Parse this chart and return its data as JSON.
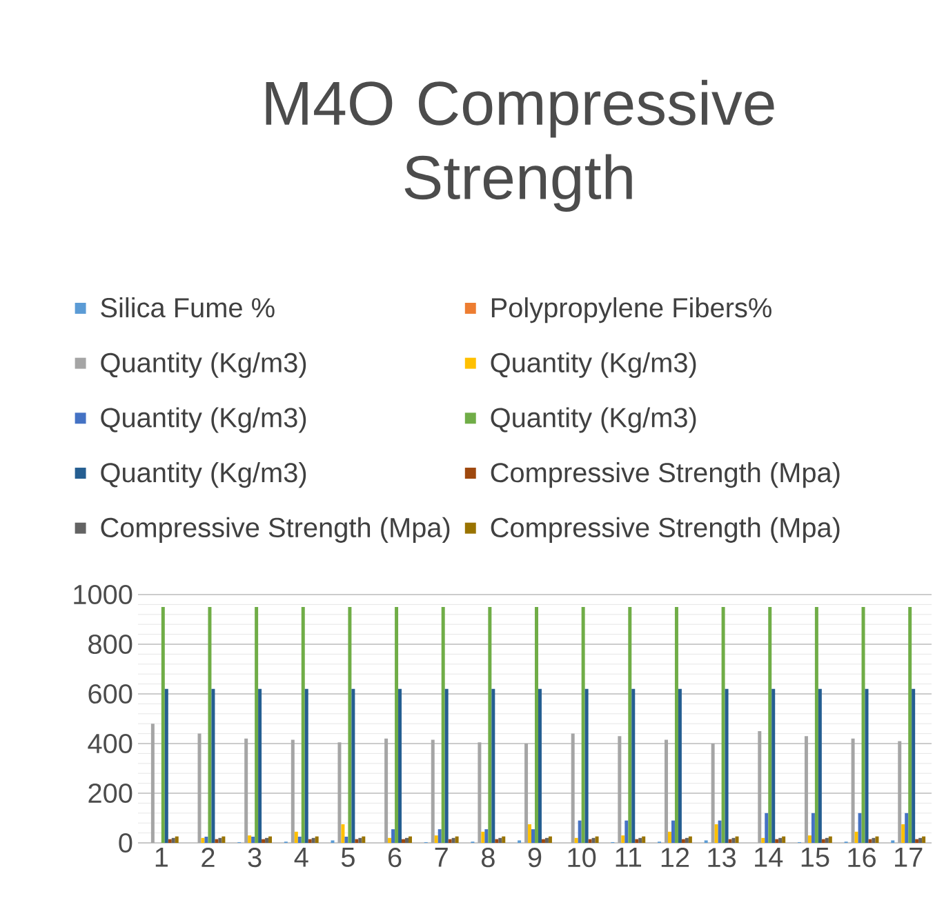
{
  "chart_data": {
    "type": "bar",
    "title": "M4O Compressive Strength",
    "categories": [
      "1",
      "2",
      "3",
      "4",
      "5",
      "6",
      "7",
      "8",
      "9",
      "10",
      "11",
      "12",
      "13",
      "14",
      "15",
      "16",
      "17"
    ],
    "series": [
      {
        "name": "Silica Fume %",
        "color": "#5b9bd5",
        "values": [
          0,
          0,
          3,
          5,
          10,
          0,
          3,
          5,
          10,
          0,
          3,
          5,
          10,
          0,
          3,
          5,
          10
        ]
      },
      {
        "name": "Polypropylene Fibers%",
        "color": "#ed7d31",
        "values": [
          0,
          0,
          0,
          0,
          0,
          0,
          0,
          0,
          0,
          0,
          0,
          0,
          0,
          0,
          0,
          0,
          0
        ]
      },
      {
        "name": "Quantity (Kg/m3)",
        "color": "#a5a5a5",
        "values": [
          480,
          440,
          420,
          415,
          405,
          420,
          415,
          405,
          400,
          440,
          430,
          415,
          400,
          450,
          430,
          420,
          410
        ]
      },
      {
        "name": "Quantity (Kg/m3)",
        "color": "#ffc000",
        "values": [
          0,
          20,
          30,
          45,
          75,
          20,
          30,
          45,
          75,
          20,
          30,
          45,
          75,
          20,
          30,
          45,
          75
        ]
      },
      {
        "name": "Quantity (Kg/m3)",
        "color": "#4472c4",
        "values": [
          0,
          25,
          25,
          25,
          25,
          55,
          55,
          55,
          55,
          90,
          90,
          90,
          90,
          120,
          120,
          120,
          120
        ]
      },
      {
        "name": "Quantity (Kg/m3)",
        "color": "#70ad47",
        "values": [
          950,
          950,
          950,
          950,
          950,
          950,
          950,
          950,
          950,
          950,
          950,
          950,
          950,
          950,
          950,
          950,
          950
        ]
      },
      {
        "name": "Quantity (Kg/m3)",
        "color": "#255e91",
        "values": [
          620,
          620,
          620,
          620,
          620,
          620,
          620,
          620,
          620,
          620,
          620,
          620,
          620,
          620,
          620,
          620,
          620
        ]
      },
      {
        "name": "Compressive Strength (Mpa)",
        "color": "#9e480e",
        "values": [
          15,
          15,
          15,
          15,
          15,
          15,
          15,
          15,
          15,
          15,
          15,
          15,
          15,
          15,
          15,
          15,
          15
        ]
      },
      {
        "name": "Compressive Strength (Mpa)",
        "color": "#636363",
        "values": [
          20,
          20,
          20,
          20,
          20,
          20,
          20,
          20,
          20,
          20,
          20,
          20,
          20,
          20,
          20,
          20,
          20
        ]
      },
      {
        "name": "Compressive Strength (Mpa)",
        "color": "#997300",
        "values": [
          26,
          26,
          26,
          26,
          26,
          26,
          26,
          26,
          26,
          26,
          26,
          26,
          26,
          26,
          26,
          26,
          26
        ]
      }
    ],
    "ylim": [
      0,
      1000
    ],
    "yticks": [
      0,
      200,
      400,
      600,
      800,
      1000
    ],
    "grid": true,
    "legend": "top"
  }
}
